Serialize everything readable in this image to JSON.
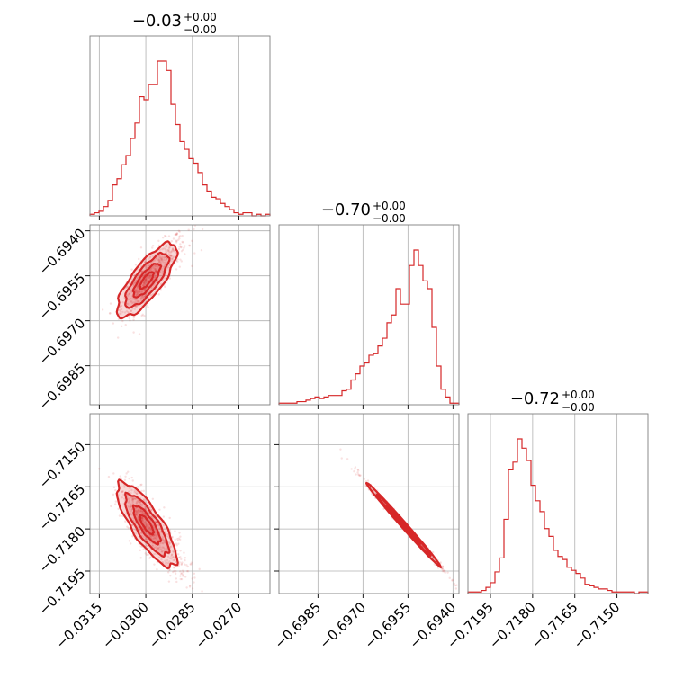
{
  "colors": {
    "series": "#d62728",
    "grid": "#b0b0b0",
    "frame": "#7f7f7f"
  },
  "chart_data": {
    "type": "corner",
    "parameters": [
      {
        "range": [
          -0.0318,
          -0.026
        ],
        "ticks": [
          "−0.0315",
          "−0.0300",
          "−0.0285",
          "−0.0270"
        ],
        "tick_values": [
          -0.0315,
          -0.03,
          -0.0285,
          -0.027
        ],
        "title_main": "−0.03",
        "title_plus": "+0.00",
        "title_minus": "−0.00",
        "hist": {
          "edges_start": -0.0318,
          "bin_width": 0.000145,
          "counts": [
            1,
            2,
            3,
            6,
            10,
            20,
            24,
            33,
            39,
            50,
            60,
            77,
            75,
            85,
            85,
            100,
            100,
            94,
            72,
            59,
            48,
            43,
            37,
            34,
            28,
            20,
            16,
            12,
            11,
            8,
            6,
            4,
            2,
            1,
            2,
            2,
            0,
            1,
            0,
            1
          ]
        }
      },
      {
        "range": [
          -0.6998,
          -0.6938
        ],
        "ticks": [
          "−0.6985",
          "−0.6970",
          "−0.6955",
          "−0.6940"
        ],
        "tick_values": [
          -0.6985,
          -0.697,
          -0.6955,
          -0.694
        ],
        "title_main": "−0.70",
        "title_plus": "+0.00",
        "title_minus": "−0.00",
        "hist": {
          "edges_start": -0.6998,
          "bin_width": 0.00015,
          "counts": [
            1,
            1,
            1,
            1,
            2,
            2,
            3,
            4,
            5,
            4,
            5,
            6,
            6,
            6,
            9,
            10,
            16,
            20,
            25,
            27,
            32,
            33,
            38,
            43,
            53,
            58,
            75,
            65,
            65,
            90,
            100,
            90,
            80,
            75,
            50,
            25,
            10,
            5,
            1,
            1
          ]
        }
      },
      {
        "range": [
          -0.7203,
          -0.7139
        ],
        "ticks": [
          "−0.7195",
          "−0.7180",
          "−0.7165",
          "−0.7150"
        ],
        "tick_values": [
          -0.7195,
          -0.718,
          -0.7165,
          -0.715
        ],
        "title_main": "−0.72",
        "title_plus": "+0.00",
        "title_minus": "−0.00",
        "hist": {
          "edges_start": -0.7203,
          "bin_width": 0.00016,
          "counts": [
            1,
            1,
            1,
            2,
            4,
            7,
            14,
            23,
            48,
            80,
            85,
            100,
            94,
            86,
            70,
            60,
            53,
            42,
            37,
            28,
            24,
            22,
            17,
            15,
            13,
            10,
            6,
            5,
            4,
            3,
            3,
            2,
            1,
            1,
            1,
            1,
            1,
            0,
            1,
            1
          ]
        }
      }
    ],
    "pairs": [
      {
        "row": 1,
        "col": 0,
        "correlation": 0.78
      },
      {
        "row": 2,
        "col": 0,
        "correlation": -0.8
      },
      {
        "row": 2,
        "col": 1,
        "correlation": -0.995
      }
    ],
    "grid": true
  }
}
